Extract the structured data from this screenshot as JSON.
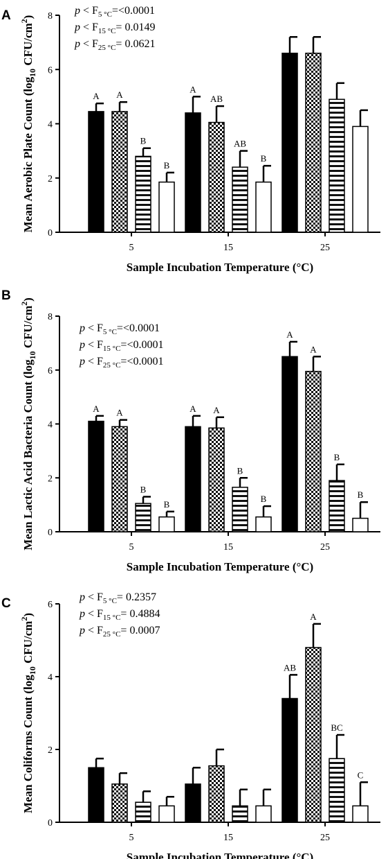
{
  "chart_data": [
    {
      "type": "bar",
      "panel_label": "A",
      "categories": [
        "5",
        "15",
        "25"
      ],
      "xlabel": "Sample Incubation Temperature (°C)",
      "ylabel_main": "Mean Aerobic Plate Count (log",
      "ylabel_sub": "10",
      "ylabel_rest": " CFU/cm",
      "ylabel_sup": "2",
      "ylabel_close": ")",
      "ylim": [
        0,
        8
      ],
      "yticks": [
        0,
        2,
        4,
        6,
        8
      ],
      "pvalues": [
        {
          "sub": "5 °C",
          "value": "=<0.0001"
        },
        {
          "sub": "15 °C",
          "value": "= 0.0149"
        },
        {
          "sub": "25 °C",
          "value": "= 0.0621"
        }
      ],
      "series": [
        {
          "pattern": "solid",
          "values": [
            4.45,
            4.4,
            6.6
          ],
          "errors": [
            0.3,
            0.6,
            0.6
          ],
          "letters": [
            "A",
            "A",
            ""
          ]
        },
        {
          "pattern": "checker",
          "values": [
            4.45,
            4.05,
            6.6
          ],
          "errors": [
            0.35,
            0.6,
            0.6
          ],
          "letters": [
            "A",
            "AB",
            ""
          ]
        },
        {
          "pattern": "hlines",
          "values": [
            2.8,
            2.4,
            4.9
          ],
          "errors": [
            0.3,
            0.6,
            0.6
          ],
          "letters": [
            "B",
            "AB",
            ""
          ]
        },
        {
          "pattern": "open",
          "values": [
            1.85,
            1.85,
            3.9
          ],
          "errors": [
            0.35,
            0.6,
            0.6
          ],
          "letters": [
            "B",
            "B",
            ""
          ]
        }
      ]
    },
    {
      "type": "bar",
      "panel_label": "B",
      "categories": [
        "5",
        "15",
        "25"
      ],
      "xlabel": "Sample Incubation Temperature (°C)",
      "ylabel_main": "Mean Lactic Acid Bacteria Count (log",
      "ylabel_sub": "10",
      "ylabel_rest": " CFU/cm",
      "ylabel_sup": "2",
      "ylabel_close": ")",
      "ylim": [
        0,
        8
      ],
      "yticks": [
        0,
        2,
        4,
        6,
        8
      ],
      "pvalues": [
        {
          "sub": "5 °C",
          "value": "=<0.0001"
        },
        {
          "sub": "15 °C",
          "value": "=<0.0001"
        },
        {
          "sub": "25 °C",
          "value": "=<0.0001"
        }
      ],
      "series": [
        {
          "pattern": "solid",
          "values": [
            4.1,
            3.9,
            6.5
          ],
          "errors": [
            0.2,
            0.4,
            0.55
          ],
          "letters": [
            "A",
            "A",
            "A"
          ]
        },
        {
          "pattern": "checker",
          "values": [
            3.9,
            3.85,
            5.95
          ],
          "errors": [
            0.25,
            0.4,
            0.55
          ],
          "letters": [
            "A",
            "A",
            "A"
          ]
        },
        {
          "pattern": "hlines",
          "values": [
            1.05,
            1.65,
            1.9
          ],
          "errors": [
            0.25,
            0.35,
            0.6
          ],
          "letters": [
            "B",
            "B",
            "B"
          ]
        },
        {
          "pattern": "open",
          "values": [
            0.55,
            0.55,
            0.5
          ],
          "errors": [
            0.2,
            0.4,
            0.6
          ],
          "letters": [
            "B",
            "B",
            "B"
          ]
        }
      ]
    },
    {
      "type": "bar",
      "panel_label": "C",
      "categories": [
        "5",
        "15",
        "25"
      ],
      "xlabel": "Sample Incubation Temperature (°C)",
      "ylabel_main": "Mean Coliforms Count (log",
      "ylabel_sub": "10",
      "ylabel_rest": " CFU/cm",
      "ylabel_sup": "2",
      "ylabel_close": ")",
      "ylim": [
        0,
        6
      ],
      "yticks": [
        0,
        2,
        4,
        6
      ],
      "pvalues": [
        {
          "sub": "5 °C",
          "value": "= 0.2357"
        },
        {
          "sub": "15 °C",
          "value": "= 0.4884"
        },
        {
          "sub": "25 °C",
          "value": "= 0.0007"
        }
      ],
      "series": [
        {
          "pattern": "solid",
          "values": [
            1.5,
            1.05,
            3.4
          ],
          "errors": [
            0.25,
            0.45,
            0.65
          ],
          "letters": [
            "",
            "",
            "AB"
          ]
        },
        {
          "pattern": "checker",
          "values": [
            1.05,
            1.55,
            4.8
          ],
          "errors": [
            0.3,
            0.45,
            0.65
          ],
          "letters": [
            "",
            "",
            "A"
          ]
        },
        {
          "pattern": "hlines",
          "values": [
            0.55,
            0.45,
            1.75
          ],
          "errors": [
            0.3,
            0.45,
            0.65
          ],
          "letters": [
            "",
            "",
            "BC"
          ]
        },
        {
          "pattern": "open",
          "values": [
            0.45,
            0.45,
            0.45
          ],
          "errors": [
            0.25,
            0.45,
            0.65
          ],
          "letters": [
            "",
            "",
            "C"
          ]
        }
      ]
    }
  ]
}
